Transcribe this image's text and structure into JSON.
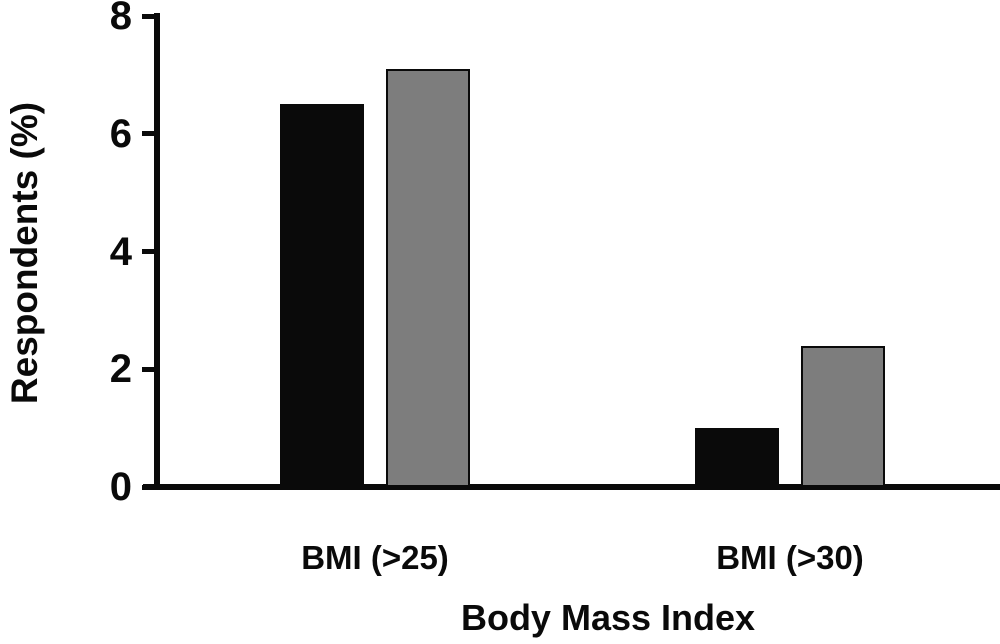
{
  "chart_data": {
    "type": "bar",
    "title": "",
    "categories": [
      "BMI (>25)",
      "BMI (>30)"
    ],
    "series": [
      {
        "name": "black-series",
        "color": "#0a0a0a",
        "values": [
          6.5,
          1.0
        ]
      },
      {
        "name": "gray-series",
        "color": "#7d7d7d",
        "values": [
          7.1,
          2.4
        ]
      }
    ],
    "xlabel": "Body Mass Index",
    "ylabel": "Respondents (%)",
    "ylim": [
      0,
      8
    ],
    "yticks": [
      0,
      2,
      4,
      6,
      8
    ],
    "grid": false,
    "legend": "none",
    "colors": {
      "axis": "#0a0a0a",
      "background": "#ffffff"
    }
  }
}
